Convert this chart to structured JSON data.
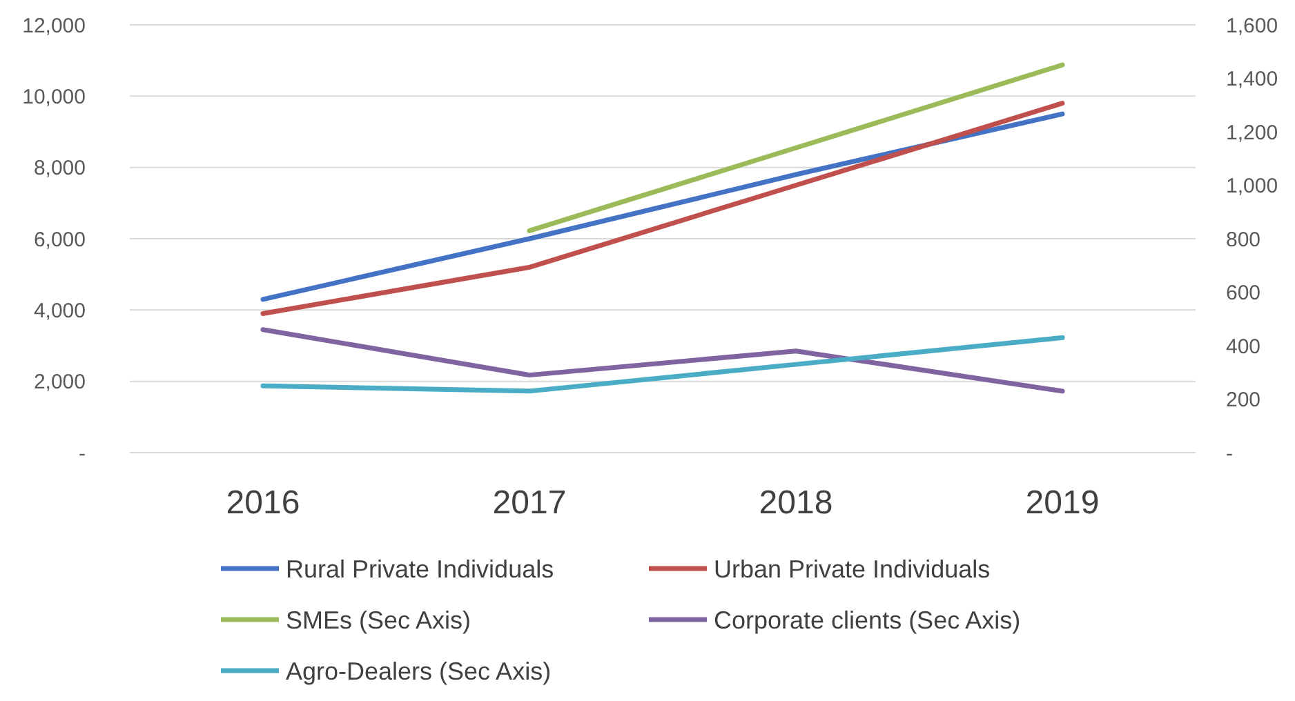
{
  "chart_data": {
    "type": "line",
    "categories": [
      "2016",
      "2017",
      "2018",
      "2019"
    ],
    "series": [
      {
        "name": "Rural Private Individuals",
        "color": "#4472c4",
        "values": [
          4300,
          6000,
          7800,
          9500
        ]
      },
      {
        "name": "Urban Private Individuals",
        "color": "#c0504d",
        "values": [
          3900,
          5200,
          7500,
          9800
        ]
      },
      {
        "name": "SMEs (Sec Axis)",
        "color": "#9bbb59",
        "axis": "y2",
        "values": [
          null,
          830,
          1140,
          1450
        ]
      },
      {
        "name": "Corporate clients (Sec Axis)",
        "color": "#8064a2",
        "axis": "y2",
        "values": [
          460,
          290,
          380,
          230
        ]
      },
      {
        "name": "Agro-Dealers (Sec Axis)",
        "color": "#4bacc6",
        "axis": "y2",
        "values": [
          250,
          230,
          330,
          430
        ]
      }
    ],
    "ylim": [
      0,
      12000
    ],
    "yticks": [
      {
        "value": 0,
        "label": "-"
      },
      {
        "value": 2000,
        "label": "2,000"
      },
      {
        "value": 4000,
        "label": "4,000"
      },
      {
        "value": 6000,
        "label": "6,000"
      },
      {
        "value": 8000,
        "label": "8,000"
      },
      {
        "value": 10000,
        "label": "10,000"
      },
      {
        "value": 12000,
        "label": "12,000"
      }
    ],
    "y2lim": [
      0,
      1600
    ],
    "y2ticks": [
      {
        "value": 0,
        "label": "-"
      },
      {
        "value": 200,
        "label": "200"
      },
      {
        "value": 400,
        "label": "400"
      },
      {
        "value": 600,
        "label": "600"
      },
      {
        "value": 800,
        "label": "800"
      },
      {
        "value": 1000,
        "label": "1,000"
      },
      {
        "value": 1200,
        "label": "1,200"
      },
      {
        "value": 1400,
        "label": "1,400"
      },
      {
        "value": 1600,
        "label": "1,600"
      }
    ],
    "grid": "y",
    "legend": "bottom",
    "line_style": "solid"
  }
}
